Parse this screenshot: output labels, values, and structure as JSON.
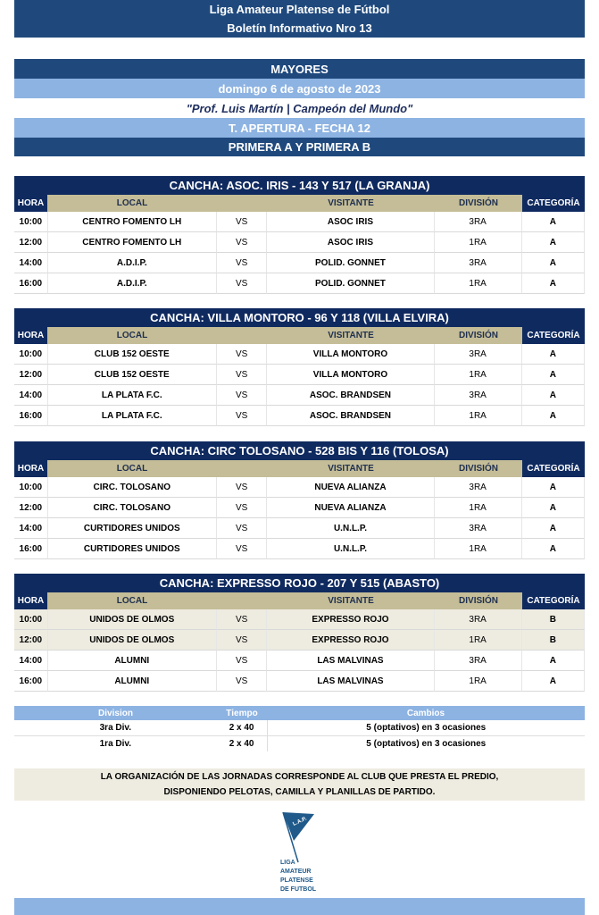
{
  "header": {
    "line1": "Liga Amateur Platense de Fútbol",
    "line2": "Boletín Informativo Nro 13"
  },
  "info": {
    "category": "MAYORES",
    "date": "domingo 6 de agosto de 2023",
    "dedication": "\"Prof. Luis Martín | Campeón del Mundo\"",
    "tournament": "T. APERTURA - FECHA 12",
    "divisions": "PRIMERA A Y PRIMERA B"
  },
  "columns": {
    "hora": "HORA",
    "local": "LOCAL",
    "visitante": "VISITANTE",
    "division": "DIVISIÓN",
    "categoria": "CATEGORÍA"
  },
  "sections": [
    {
      "title": "CANCHA: ASOC. IRIS - 143 Y 517 (LA GRANJA)",
      "rows": [
        {
          "hora": "10:00",
          "local": "CENTRO FOMENTO LH",
          "vs": "VS",
          "visitante": "ASOC IRIS",
          "division": "3RA",
          "cat": "A"
        },
        {
          "hora": "12:00",
          "local": "CENTRO FOMENTO LH",
          "vs": "VS",
          "visitante": "ASOC IRIS",
          "division": "1RA",
          "cat": "A"
        },
        {
          "hora": "14:00",
          "local": "A.D.I.P.",
          "vs": "VS",
          "visitante": "POLID. GONNET",
          "division": "3RA",
          "cat": "A"
        },
        {
          "hora": "16:00",
          "local": "A.D.I.P.",
          "vs": "VS",
          "visitante": "POLID. GONNET",
          "division": "1RA",
          "cat": "A"
        }
      ]
    },
    {
      "title": "CANCHA: VILLA MONTORO - 96 Y 118 (VILLA ELVIRA)",
      "rows": [
        {
          "hora": "10:00",
          "local": "CLUB 152 OESTE",
          "vs": "VS",
          "visitante": "VILLA MONTORO",
          "division": "3RA",
          "cat": "A"
        },
        {
          "hora": "12:00",
          "local": "CLUB 152 OESTE",
          "vs": "VS",
          "visitante": "VILLA MONTORO",
          "division": "1RA",
          "cat": "A"
        },
        {
          "hora": "14:00",
          "local": "LA PLATA F.C.",
          "vs": "VS",
          "visitante": "ASOC. BRANDSEN",
          "division": "3RA",
          "cat": "A"
        },
        {
          "hora": "16:00",
          "local": "LA PLATA F.C.",
          "vs": "VS",
          "visitante": "ASOC. BRANDSEN",
          "division": "1RA",
          "cat": "A"
        }
      ]
    },
    {
      "title": "CANCHA: CIRC TOLOSANO - 528 BIS Y 116 (TOLOSA)",
      "rows": [
        {
          "hora": "10:00",
          "local": "CIRC. TOLOSANO",
          "vs": "VS",
          "visitante": "NUEVA ALIANZA",
          "division": "3RA",
          "cat": "A"
        },
        {
          "hora": "12:00",
          "local": "CIRC. TOLOSANO",
          "vs": "VS",
          "visitante": "NUEVA ALIANZA",
          "division": "1RA",
          "cat": "A"
        },
        {
          "hora": "14:00",
          "local": "CURTIDORES UNIDOS",
          "vs": "VS",
          "visitante": "U.N.L.P.",
          "division": "3RA",
          "cat": "A"
        },
        {
          "hora": "16:00",
          "local": "CURTIDORES UNIDOS",
          "vs": "VS",
          "visitante": "U.N.L.P.",
          "division": "1RA",
          "cat": "A"
        }
      ]
    },
    {
      "title": "CANCHA: EXPRESSO ROJO - 207 Y 515 (ABASTO)",
      "rows": [
        {
          "hora": "10:00",
          "local": "UNIDOS DE OLMOS",
          "vs": "VS",
          "visitante": "EXPRESSO ROJO",
          "division": "3RA",
          "cat": "B"
        },
        {
          "hora": "12:00",
          "local": "UNIDOS DE OLMOS",
          "vs": "VS",
          "visitante": "EXPRESSO ROJO",
          "division": "1RA",
          "cat": "B"
        },
        {
          "hora": "14:00",
          "local": "ALUMNI",
          "vs": "VS",
          "visitante": "LAS MALVINAS",
          "division": "3RA",
          "cat": "A"
        },
        {
          "hora": "16:00",
          "local": "ALUMNI",
          "vs": "VS",
          "visitante": "LAS MALVINAS",
          "division": "1RA",
          "cat": "A"
        }
      ]
    }
  ],
  "rules": {
    "headers": [
      "Division",
      "Tiempo",
      "Cambios"
    ],
    "rows": [
      [
        "3ra Div.",
        "2 x 40",
        "5 (optativos) en 3 ocasiones"
      ],
      [
        "1ra Div.",
        "2 x 40",
        "5 (optativos) en 3 ocasiones"
      ]
    ]
  },
  "note": {
    "line1": "LA ORGANIZACIÓN DE LAS JORNADAS CORRESPONDE AL CLUB QUE PRESTA EL PREDIO,",
    "line2": "DISPONIENDO PELOTAS, CAMILLA Y PLANILLAS DE PARTIDO."
  },
  "logo": {
    "flag_text": "L.A.P.",
    "lines": [
      "LIGA",
      "AMATEUR",
      "PLATENSE",
      "DE FUTBOL"
    ],
    "color": "#1f5a8a"
  }
}
